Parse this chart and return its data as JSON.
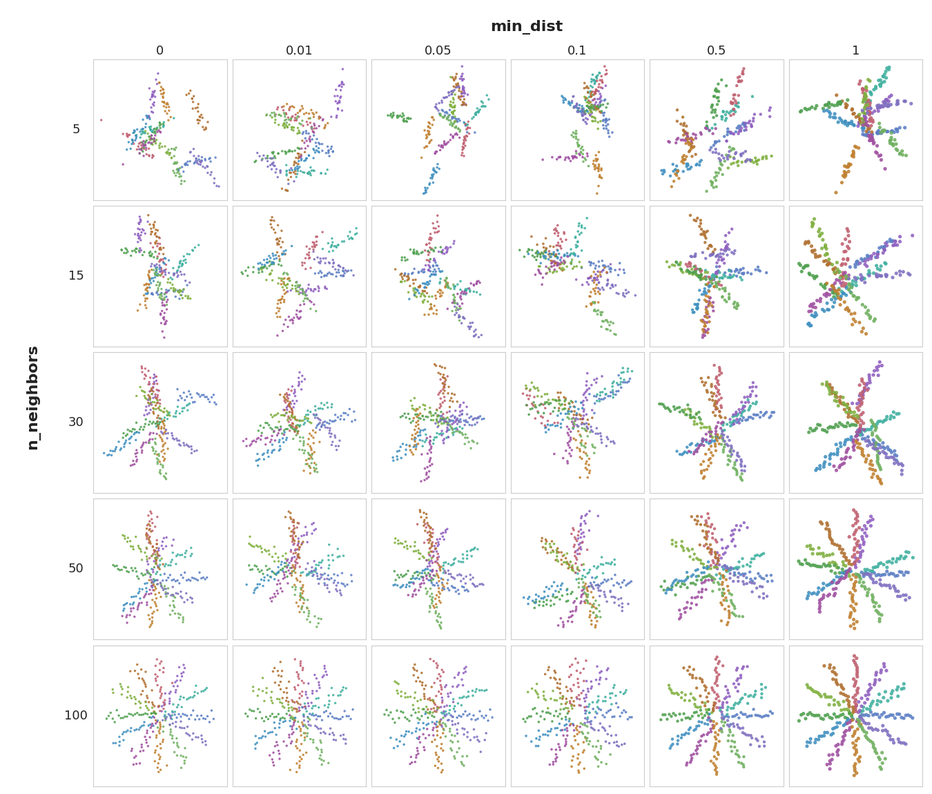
{
  "n_neighbors": [
    5,
    15,
    30,
    50,
    100
  ],
  "min_dist": [
    0,
    0.01,
    0.05,
    0.1,
    0.5,
    1
  ],
  "n_arms": 12,
  "points_per_arm": 25,
  "title": "min_dist",
  "ylabel": "n_neighbors",
  "title_fontsize": 16,
  "tick_fontsize": 13,
  "background_color": "#ffffff",
  "spine_color": "#cccccc",
  "arm_colors": [
    "#5b7fc4",
    "#40b0a0",
    "#9060c0",
    "#c06070",
    "#b07030",
    "#80b040",
    "#50a050",
    "#4090c0",
    "#a050a0",
    "#c08030",
    "#70b060",
    "#8070c0"
  ]
}
